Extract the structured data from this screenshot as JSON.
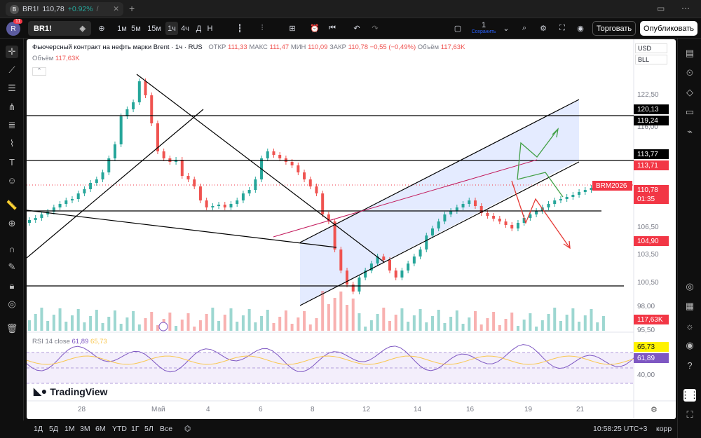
{
  "tab": {
    "logo": "B",
    "symbol": "BR1!",
    "price": "110,78",
    "change": "+0.92%",
    "separator": "/",
    "close": "1"
  },
  "toolbar": {
    "avatar": "R",
    "badge": "11",
    "symbol": "BR1!",
    "intervals": [
      "1м",
      "5м",
      "15м",
      "1ч",
      "4ч",
      "Д",
      "Н"
    ],
    "active_interval": "1ч",
    "layout_num": "1",
    "save_label": "Сохранить",
    "trade_label": "Торговать",
    "publish_label": "Опубликовать"
  },
  "legend": {
    "title": "Фьючерсный контракт на нефть марки Brent · 1ч · RUS",
    "open_l": "ОТКР",
    "open": "111,33",
    "high_l": "МАКС",
    "high": "111,47",
    "low_l": "МИН",
    "low": "110,09",
    "close_l": "ЗАКР",
    "close": "110,78",
    "chg": "−0,55 (−0,49%)",
    "vol_l": "Объём",
    "vol": "117,63K",
    "vol_row": "Объём",
    "vol_row_val": "117,63K"
  },
  "price_axis": {
    "currency": "USD",
    "unit": "BLL",
    "ticks": [
      "122,50",
      "116,00",
      "106,50",
      "103,50",
      "100,50",
      "98,00",
      "95,50"
    ],
    "labels": [
      {
        "v": "120,13",
        "bg": "#000000",
        "fg": "#ffffff",
        "y": 93
      },
      {
        "v": "119,24",
        "bg": "#000000",
        "fg": "#ffffff",
        "y": 109
      },
      {
        "v": "113,77",
        "bg": "#000000",
        "fg": "#ffffff",
        "y": 157
      },
      {
        "v": "113,71",
        "bg": "#f23645",
        "fg": "#ffffff",
        "y": 173
      },
      {
        "v": "110,78",
        "bg": "#f23645",
        "fg": "#ffffff",
        "y": 208
      },
      {
        "v": "01:35",
        "bg": "#f23645",
        "fg": "#ffffff",
        "y": 221
      },
      {
        "v": "104,90",
        "bg": "#f23645",
        "fg": "#ffffff",
        "y": 281
      },
      {
        "v": "117,63K",
        "bg": "#f23645",
        "fg": "#ffffff",
        "y": 393
      }
    ],
    "tag": "BRM2026"
  },
  "rsi": {
    "label": "RSI 14 close",
    "v1": "61,89",
    "v2": "65,73",
    "tick": "40,00",
    "val1": "65,73",
    "val2": "61,89"
  },
  "time_axis": [
    "28",
    "Май",
    "4",
    "6",
    "8",
    "12",
    "14",
    "16",
    "19",
    "21"
  ],
  "watermark": "TradingView",
  "bottom": {
    "ranges": [
      "1Д",
      "5Д",
      "1М",
      "3М",
      "6М",
      "YTD",
      "1Г",
      "5Л",
      "Все"
    ],
    "clock": "10:58:25 UTC+3",
    "adj": "корр"
  },
  "colors": {
    "up": "#26a69a",
    "down": "#ef5350",
    "accent": "#2962ff",
    "channel": "#dde6ff"
  }
}
